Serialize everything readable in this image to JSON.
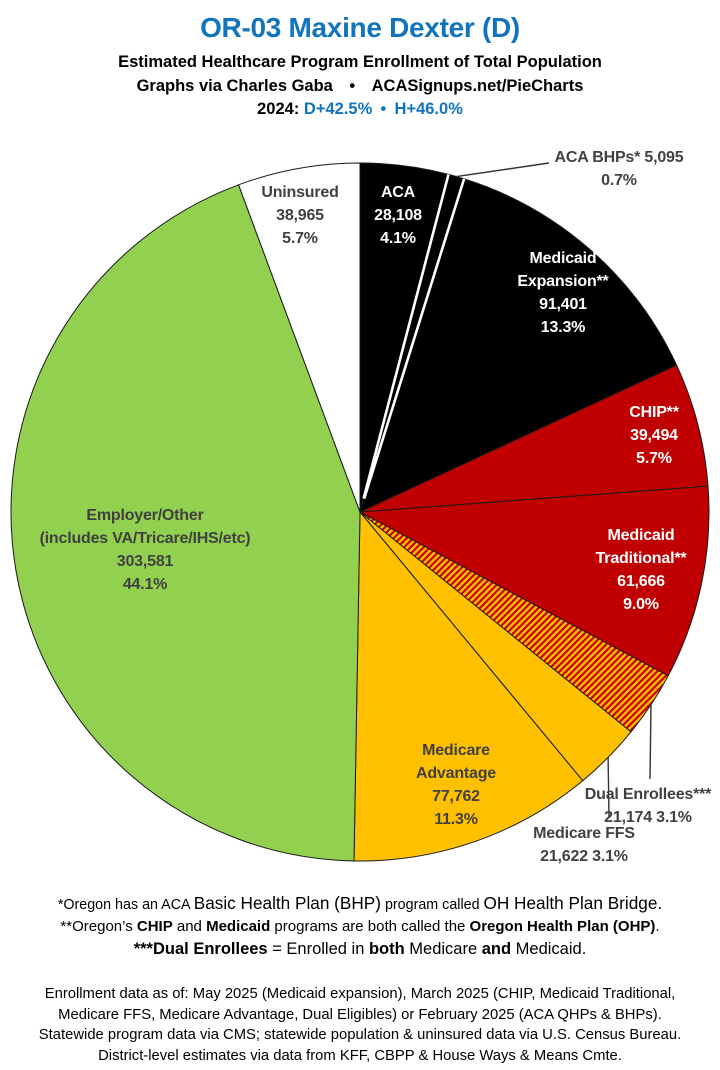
{
  "header": {
    "title": "OR-03 Maxine Dexter (D)",
    "title_color": "#1274BD",
    "subtitle": "Estimated Healthcare Program Enrollment of Total Population",
    "credit": "Graphs via Charles Gaba  •  ACASignups.net/PieCharts",
    "year_line": [
      {
        "t": "2024: "
      },
      {
        "t": "D+42.5%",
        "color": "#1274BD"
      },
      {
        "t": " • ",
        "color": "#1274BD"
      },
      {
        "t": "H+46.0%",
        "color": "#1274BD"
      }
    ]
  },
  "chart_data": {
    "type": "pie",
    "start_angle_deg": 0,
    "direction": "clockwise",
    "units": "people",
    "total": 688868,
    "outline_color": "#1a1a1a",
    "slices": [
      {
        "id": "aca",
        "label": "ACA",
        "value": 28108,
        "value_text": "28,108",
        "pct_text": "4.1%",
        "color": "#000000",
        "label_color": "#ffffff",
        "label_lines": [
          "ACA",
          "28,108",
          "4.1%"
        ]
      },
      {
        "id": "aca-bhp",
        "label": "ACA BHPs*",
        "value": 5095,
        "value_text": "5,095",
        "pct_text": "0.7%",
        "color": "#000000",
        "label_color": "#414141",
        "callout": true,
        "label_lines": [
          "ACA BHPs* 5,095",
          "0.7%"
        ]
      },
      {
        "id": "medicaid-expansion",
        "label": "Medicaid Expansion**",
        "value": 91401,
        "value_text": "91,401",
        "pct_text": "13.3%",
        "color": "#000000",
        "label_color": "#ffffff",
        "label_lines": [
          "Medicaid",
          "Expansion**",
          "91,401",
          "13.3%"
        ]
      },
      {
        "id": "chip",
        "label": "CHIP**",
        "value": 39494,
        "value_text": "39,494",
        "pct_text": "5.7%",
        "color": "#C00000",
        "label_color": "#ffffff",
        "label_lines": [
          "CHIP**",
          "39,494",
          "5.7%"
        ]
      },
      {
        "id": "medicaid-traditional",
        "label": "Medicaid Traditional**",
        "value": 61666,
        "value_text": "61,666",
        "pct_text": "9.0%",
        "color": "#C00000",
        "label_color": "#ffffff",
        "label_lines": [
          "Medicaid",
          "Traditional**",
          "61,666",
          "9.0%"
        ]
      },
      {
        "id": "dual-enrollees",
        "label": "Dual Enrollees***",
        "value": 21174,
        "value_text": "21,174",
        "pct_text": "3.1%",
        "color": "#FFC000",
        "pattern": "hatch",
        "label_color": "#414141",
        "callout": true,
        "label_lines": [
          "Dual Enrollees***",
          "21,174 3.1%"
        ]
      },
      {
        "id": "medicare-ffs",
        "label": "Medicare FFS",
        "value": 21622,
        "value_text": "21,622",
        "pct_text": "3.1%",
        "color": "#FFC000",
        "label_color": "#414141",
        "callout": true,
        "label_lines": [
          "Medicare FFS",
          "21,622 3.1%"
        ]
      },
      {
        "id": "medicare-advantage",
        "label": "Medicare Advantage",
        "value": 77762,
        "value_text": "77,762",
        "pct_text": "11.3%",
        "color": "#FFC000",
        "label_color": "#414141",
        "label_lines": [
          "Medicare",
          "Advantage",
          "77,762",
          "11.3%"
        ]
      },
      {
        "id": "employer-other",
        "label": "Employer/Other (includes VA/Tricare/IHS/etc)",
        "value": 303581,
        "value_text": "303,581",
        "pct_text": "44.1%",
        "color": "#92D050",
        "label_color": "#414141",
        "label_lines": [
          "Employer/Other",
          "(includes VA/Tricare/IHS/etc)",
          "303,581",
          "44.1%"
        ]
      },
      {
        "id": "uninsured",
        "label": "Uninsured",
        "value": 38965,
        "value_text": "38,965",
        "pct_text": "5.7%",
        "color": "#FFFFFF",
        "label_color": "#414141",
        "label_lines": [
          "Uninsured",
          "38,965",
          "5.7%"
        ]
      }
    ],
    "separator_boundaries": [
      1,
      2
    ],
    "hatch": {
      "bg": "#FFC000",
      "stripe": "#CC0000"
    }
  },
  "footnotes": {
    "line1": [
      {
        "t": "*Oregon has an ACA "
      },
      {
        "t": "Basic Health Plan (BHP)",
        "big": 1
      },
      {
        "t": " program called "
      },
      {
        "t": "OH Health Plan Bridge.",
        "big": 1
      }
    ],
    "line2": [
      {
        "t": "**Oregon’s "
      },
      {
        "t": "CHIP",
        "b": 1
      },
      {
        "t": " and "
      },
      {
        "t": "Medicaid",
        "b": 1
      },
      {
        "t": " programs are both called the "
      },
      {
        "t": "Oregon Health Plan (OHP)",
        "b": 1
      },
      {
        "t": "."
      }
    ],
    "line3": [
      {
        "t": "***Dual Enrollees",
        "b": 1
      },
      {
        "t": " = Enrolled in "
      },
      {
        "t": "both",
        "b": 1
      },
      {
        "t": " Medicare "
      },
      {
        "t": "and",
        "b": 1
      },
      {
        "t": " Medicaid."
      }
    ]
  },
  "sources": {
    "lines": [
      "Enrollment data as of: May 2025 (Medicaid expansion), March 2025 (CHIP, Medicaid Traditional,",
      "Medicare FFS, Medicare Advantage, Dual Eligibles) or February 2025 (ACA QHPs & BHPs).",
      "Statewide program data via CMS; statewide population & uninsured data via U.S. Census Bureau.",
      "District-level estimates via data from KFF, CBPP & House Ways & Means Cmte."
    ]
  }
}
